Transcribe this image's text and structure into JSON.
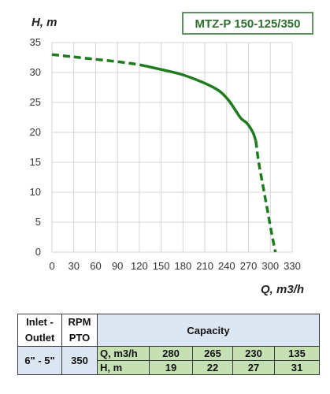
{
  "chart_data": {
    "type": "line",
    "title": "MTZ-P 150-125/350",
    "ylabel": "H, m",
    "xlabel": "Q, m3/h",
    "xlim": [
      0,
      330
    ],
    "ylim": [
      0,
      35
    ],
    "x_ticks": [
      "0",
      "30",
      "60",
      "90",
      "120",
      "150",
      "180",
      "210",
      "240",
      "270",
      "300",
      "330"
    ],
    "y_ticks": [
      "0",
      "5",
      "10",
      "15",
      "20",
      "25",
      "30",
      "35"
    ],
    "grid": true,
    "colors": {
      "curve": "#1e7b1e",
      "title_border": "#2e6f2e",
      "grid": "#d4d4d4"
    },
    "segments": [
      {
        "style": "dashed",
        "points": [
          [
            0,
            33.0
          ],
          [
            30,
            32.6
          ],
          [
            60,
            32.2
          ],
          [
            90,
            31.8
          ],
          [
            115,
            31.4
          ],
          [
            128,
            31.1
          ]
        ]
      },
      {
        "style": "solid",
        "points": [
          [
            128,
            31.1
          ],
          [
            150,
            30.5
          ],
          [
            180,
            29.6
          ],
          [
            210,
            28.2
          ],
          [
            230,
            26.9
          ],
          [
            243,
            25.3
          ],
          [
            252,
            23.7
          ],
          [
            260,
            22.3
          ],
          [
            268,
            21.5
          ],
          [
            276,
            20.0
          ],
          [
            280,
            18.6
          ]
        ]
      },
      {
        "style": "dashed",
        "points": [
          [
            280,
            18.6
          ],
          [
            284,
            15.0
          ],
          [
            290,
            11.0
          ],
          [
            296,
            7.0
          ],
          [
            302,
            3.0
          ],
          [
            307,
            0.0
          ]
        ]
      }
    ]
  },
  "table": {
    "inlet_outlet_header": [
      "Inlet -",
      "Outlet"
    ],
    "rpm_header": [
      "RPM",
      "PTO"
    ],
    "capacity_header": "Capacity",
    "inlet_outlet_value": "6\" - 5\"",
    "rpm_value": "350",
    "q_label": "Q, m3/h",
    "h_label": "H, m",
    "q_values": [
      "280",
      "265",
      "230",
      "135"
    ],
    "h_values": [
      "19",
      "22",
      "27",
      "31"
    ]
  }
}
